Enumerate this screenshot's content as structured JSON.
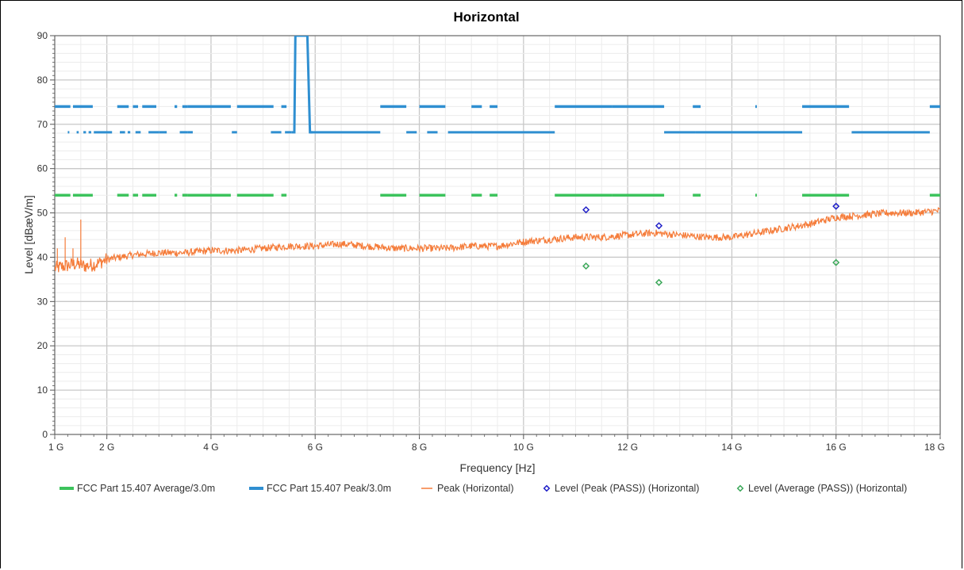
{
  "chart_data": {
    "type": "line",
    "title": "Horizontal",
    "xlabel": "Frequency [Hz]",
    "ylabel": "Level [dBæV/m]",
    "xlim": [
      1,
      18
    ],
    "ylim": [
      0,
      90
    ],
    "x_unit": "GHz",
    "grid": true,
    "legend_position": "bottom",
    "x_ticks": [
      {
        "v": 1,
        "label": "1 G"
      },
      {
        "v": 2,
        "label": "2 G"
      },
      {
        "v": 4,
        "label": "4 G"
      },
      {
        "v": 6,
        "label": "6 G"
      },
      {
        "v": 8,
        "label": "8 G"
      },
      {
        "v": 10,
        "label": "10 G"
      },
      {
        "v": 12,
        "label": "12 G"
      },
      {
        "v": 14,
        "label": "14 G"
      },
      {
        "v": 16,
        "label": "16 G"
      },
      {
        "v": 18,
        "label": "18 G"
      }
    ],
    "y_ticks": [
      0,
      10,
      20,
      30,
      40,
      50,
      60,
      70,
      80,
      90
    ],
    "series": [
      {
        "name": "FCC Part 15.407 Average/3.0m",
        "kind": "limit",
        "color": "#3cc35c",
        "level": 54,
        "segments": [
          [
            1.0,
            1.3
          ],
          [
            1.35,
            1.73
          ],
          [
            2.2,
            2.42
          ],
          [
            2.5,
            2.6
          ],
          [
            2.68,
            2.95
          ],
          [
            3.3,
            3.35
          ],
          [
            3.45,
            3.55
          ],
          [
            3.55,
            4.38
          ],
          [
            4.5,
            5.2
          ],
          [
            5.35,
            5.45
          ],
          [
            7.25,
            7.75
          ],
          [
            8.0,
            8.5
          ],
          [
            9.0,
            9.2
          ],
          [
            9.35,
            9.5
          ],
          [
            10.6,
            11.7
          ],
          [
            11.7,
            12.7
          ],
          [
            13.25,
            13.4
          ],
          [
            14.45,
            14.48
          ],
          [
            15.35,
            16.25
          ],
          [
            17.8,
            18.0
          ]
        ]
      },
      {
        "name": "FCC Part 15.407 Peak/3.0m",
        "kind": "limit",
        "color": "#2f8fd1",
        "upper_level": 74,
        "upper_segments": [
          [
            1.0,
            1.3
          ],
          [
            1.35,
            1.73
          ],
          [
            2.2,
            2.42
          ],
          [
            2.5,
            2.6
          ],
          [
            2.68,
            2.95
          ],
          [
            3.3,
            3.35
          ],
          [
            3.45,
            3.55
          ],
          [
            3.55,
            4.38
          ],
          [
            4.5,
            5.2
          ],
          [
            5.35,
            5.45
          ],
          [
            7.25,
            7.75
          ],
          [
            8.0,
            8.5
          ],
          [
            9.0,
            9.2
          ],
          [
            9.35,
            9.5
          ],
          [
            10.6,
            11.7
          ],
          [
            11.7,
            12.7
          ],
          [
            13.25,
            13.4
          ],
          [
            14.45,
            14.48
          ],
          [
            15.35,
            16.25
          ],
          [
            17.8,
            18.0
          ]
        ],
        "lower_level": 68.2,
        "lower_segments": [
          [
            1.25,
            1.28
          ],
          [
            1.42,
            1.46
          ],
          [
            1.55,
            1.6
          ],
          [
            1.65,
            1.7
          ],
          [
            1.75,
            2.1
          ],
          [
            2.25,
            2.35
          ],
          [
            2.4,
            2.45
          ],
          [
            2.55,
            2.65
          ],
          [
            2.8,
            3.0
          ],
          [
            3.0,
            3.15
          ],
          [
            3.4,
            3.55
          ],
          [
            3.55,
            3.65
          ],
          [
            4.4,
            4.5
          ],
          [
            5.15,
            5.35
          ],
          [
            5.42,
            5.55
          ],
          [
            5.9,
            7.25
          ],
          [
            7.75,
            7.95
          ],
          [
            8.15,
            8.35
          ],
          [
            8.55,
            9.05
          ],
          [
            9.05,
            10.6
          ],
          [
            12.7,
            13.3
          ],
          [
            13.3,
            15.35
          ],
          [
            16.3,
            17.8
          ]
        ],
        "spike": {
          "x_start": 5.55,
          "x_end": 5.95,
          "from": 68.2,
          "to": 90
        },
        "spike_in_out": [
          [
            5.55,
            68.2
          ],
          [
            5.6,
            68.2
          ],
          [
            5.62,
            90
          ],
          [
            5.85,
            90
          ],
          [
            5.9,
            68.2
          ],
          [
            5.95,
            68.2
          ]
        ]
      },
      {
        "name": "Peak (Horizontal)",
        "kind": "trace",
        "color": "#f57c3a",
        "x": [
          1.0,
          1.2,
          1.4,
          1.6,
          1.8,
          2.0,
          2.5,
          3.0,
          3.5,
          4.0,
          4.5,
          5.0,
          5.5,
          6.0,
          6.5,
          7.0,
          7.5,
          8.0,
          8.5,
          9.0,
          9.5,
          10.0,
          10.5,
          11.0,
          11.5,
          12.0,
          12.5,
          13.0,
          13.5,
          14.0,
          14.5,
          15.0,
          15.5,
          16.0,
          16.5,
          17.0,
          17.5,
          18.0
        ],
        "y": [
          37.5,
          38.0,
          38.5,
          38.0,
          38.5,
          39.5,
          40.5,
          41.0,
          41.0,
          41.5,
          41.5,
          42.0,
          42.5,
          42.5,
          43.0,
          42.5,
          42.0,
          42.0,
          42.0,
          42.5,
          42.5,
          43.5,
          44.0,
          44.5,
          44.5,
          45.0,
          45.5,
          45.0,
          44.5,
          44.5,
          45.5,
          46.5,
          47.5,
          49.0,
          49.5,
          50.0,
          50.0,
          50.5
        ],
        "spikes": [
          {
            "x": 1.05,
            "y": 42
          },
          {
            "x": 1.2,
            "y": 44.5
          },
          {
            "x": 1.35,
            "y": 42
          },
          {
            "x": 1.5,
            "y": 48.5
          }
        ]
      },
      {
        "name": "Level (Peak (PASS)) (Horizontal)",
        "kind": "markers",
        "color": "#2020c8",
        "points": [
          {
            "x": 11.2,
            "y": 50.7
          },
          {
            "x": 12.6,
            "y": 47.1
          },
          {
            "x": 16.0,
            "y": 51.5
          }
        ]
      },
      {
        "name": "Level (Average (PASS)) (Horizontal)",
        "kind": "markers",
        "color": "#3ca85a",
        "points": [
          {
            "x": 11.2,
            "y": 38.0
          },
          {
            "x": 12.6,
            "y": 34.3
          },
          {
            "x": 16.0,
            "y": 38.8
          }
        ]
      }
    ]
  }
}
